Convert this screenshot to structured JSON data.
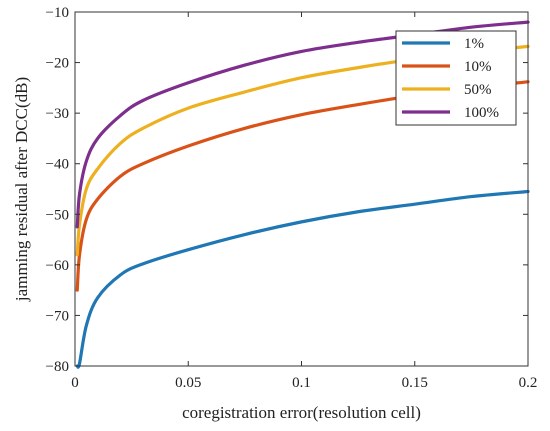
{
  "chart_data": {
    "type": "line",
    "xlabel": "coregistration error(resolution cell)",
    "ylabel": "jamming residual after DCC(dB)",
    "xlim": [
      0,
      0.2
    ],
    "ylim": [
      -80,
      -10
    ],
    "x_ticks": [
      0,
      0.05,
      0.1,
      0.15,
      0.2
    ],
    "x_tick_labels": [
      "0",
      "0.05",
      "0.1",
      "0.15",
      "0.2"
    ],
    "y_ticks": [
      -80,
      -70,
      -60,
      -50,
      -40,
      -30,
      -20,
      -10
    ],
    "y_tick_labels": [
      "−80",
      "−70",
      "−60",
      "−50",
      "−40",
      "−30",
      "−20",
      "−10"
    ],
    "grid": false,
    "legend_position": "top-right",
    "x": [
      0.001,
      0.002,
      0.005,
      0.01,
      0.02,
      0.03,
      0.05,
      0.075,
      0.1,
      0.125,
      0.15,
      0.175,
      0.2
    ],
    "series": [
      {
        "name": "1%",
        "color": "#1f77b4",
        "values": [
          -80.0,
          -79.5,
          -72.0,
          -66.5,
          -62.0,
          -59.8,
          -57.0,
          -54.0,
          -51.5,
          -49.5,
          -48.0,
          -46.5,
          -45.5
        ]
      },
      {
        "name": "10%",
        "color": "#d95319",
        "values": [
          -65.0,
          -58.0,
          -51.0,
          -47.0,
          -42.5,
          -40.0,
          -36.5,
          -33.0,
          -30.3,
          -28.3,
          -26.5,
          -25.0,
          -23.8
        ]
      },
      {
        "name": "50%",
        "color": "#edb120",
        "values": [
          -58.0,
          -52.0,
          -45.0,
          -41.0,
          -36.0,
          -33.0,
          -29.0,
          -25.8,
          -23.0,
          -21.0,
          -19.3,
          -18.0,
          -16.8
        ]
      },
      {
        "name": "100%",
        "color": "#7e2f8e",
        "values": [
          -52.5,
          -46.0,
          -39.5,
          -35.0,
          -30.5,
          -27.5,
          -24.0,
          -20.5,
          -17.8,
          -16.0,
          -14.5,
          -13.0,
          -12.0
        ]
      }
    ]
  }
}
